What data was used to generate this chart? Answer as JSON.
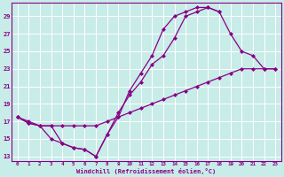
{
  "xlabel": "Windchill (Refroidissement éolien,°C)",
  "bg_color": "#c8ece8",
  "grid_color": "#aad4d0",
  "line_color": "#880088",
  "xlim": [
    -0.5,
    23.5
  ],
  "ylim": [
    12.5,
    30.5
  ],
  "yticks": [
    13,
    15,
    17,
    19,
    21,
    23,
    25,
    27,
    29
  ],
  "xticks": [
    0,
    1,
    2,
    3,
    4,
    5,
    6,
    7,
    8,
    9,
    10,
    11,
    12,
    13,
    14,
    15,
    16,
    17,
    18,
    19,
    20,
    21,
    22,
    23
  ],
  "line1_x": [
    0,
    1,
    2,
    3,
    4,
    5,
    6,
    7,
    8,
    9,
    10,
    11,
    12,
    13,
    14,
    15,
    16,
    17,
    18,
    19,
    20,
    21,
    22,
    23
  ],
  "line1_y": [
    17.5,
    17.0,
    16.5,
    16.5,
    16.5,
    16.5,
    16.5,
    16.5,
    17.0,
    17.5,
    18.0,
    18.5,
    19.0,
    19.5,
    20.0,
    20.5,
    21.0,
    21.5,
    22.0,
    22.5,
    23.0,
    23.0,
    23.0,
    23.0
  ],
  "line2_x": [
    0,
    1,
    2,
    3,
    4,
    5,
    6,
    7,
    8,
    9,
    10,
    11,
    12,
    13,
    14,
    15,
    16,
    17,
    18,
    19,
    20,
    21,
    22,
    23
  ],
  "line2_y": [
    17.5,
    16.8,
    16.5,
    15.0,
    14.5,
    14.0,
    13.8,
    13.0,
    15.5,
    18.0,
    20.0,
    21.5,
    23.5,
    24.5,
    26.5,
    29.0,
    29.5,
    30.0,
    29.5,
    27.0,
    25.0,
    24.5,
    23.0,
    23.0
  ],
  "line3_x": [
    0,
    1,
    2,
    3,
    4,
    5,
    6,
    7,
    8,
    9,
    10,
    11,
    12,
    13,
    14,
    15,
    16,
    17,
    18
  ],
  "line3_y": [
    17.5,
    16.8,
    16.5,
    16.5,
    14.5,
    14.0,
    13.8,
    13.0,
    15.5,
    17.5,
    20.5,
    22.5,
    24.5,
    27.5,
    29.0,
    29.5,
    30.0,
    30.0,
    29.5
  ]
}
